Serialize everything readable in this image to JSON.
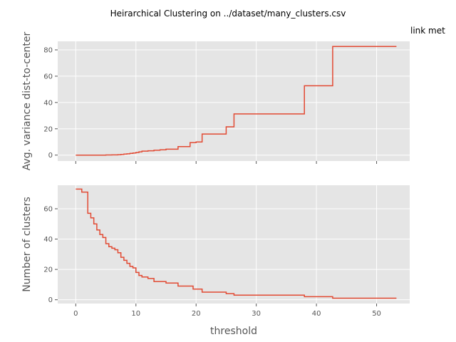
{
  "figure": {
    "suptitle": "Heirarchical Clustering on ../dataset/many_clusters.csv",
    "side_title": "link met",
    "background": "#ffffff",
    "panel_background": "#e5e5e5",
    "grid_color": "#ffffff",
    "line_color": "#e24a33"
  },
  "chart_data": [
    {
      "type": "line",
      "step": true,
      "title": "",
      "xlabel": "",
      "ylabel": "Avg. variance dist-to-center",
      "xlim": [
        -3,
        55.5
      ],
      "ylim": [
        -4.5,
        86.5
      ],
      "xticks": [
        0,
        10,
        20,
        30,
        40,
        50
      ],
      "yticks": [
        0,
        20,
        40,
        60,
        80
      ],
      "ytick_labels": [
        "0",
        "20",
        "40",
        "60",
        "80"
      ],
      "grid": true,
      "series": [
        {
          "x": [
            0,
            5,
            6,
            7,
            7.5,
            8,
            8.5,
            9,
            9.5,
            10,
            10.5,
            11,
            12,
            13,
            14,
            15,
            17,
            19,
            20,
            21,
            23.8,
            25,
            26.3,
            38,
            42.7,
            53.3
          ],
          "y": [
            0,
            0.1,
            0.2,
            0.3,
            0.5,
            0.8,
            1,
            1.3,
            1.6,
            2,
            2.5,
            3,
            3.3,
            3.7,
            4,
            4.5,
            6.5,
            9.5,
            10,
            16,
            16,
            21.5,
            31.3,
            52.7,
            82.6,
            82.6
          ]
        }
      ]
    },
    {
      "type": "line",
      "step": true,
      "title": "",
      "xlabel": "threshold",
      "ylabel": "Number of clusters",
      "xlim": [
        -3,
        55.5
      ],
      "ylim": [
        -2.5,
        75.5
      ],
      "xticks": [
        0,
        10,
        20,
        30,
        40,
        50
      ],
      "xtick_labels": [
        "0",
        "10",
        "20",
        "30",
        "40",
        "50"
      ],
      "yticks": [
        0,
        20,
        40,
        60
      ],
      "ytick_labels": [
        "0",
        "20",
        "40",
        "60"
      ],
      "grid": true,
      "series": [
        {
          "x": [
            0,
            1,
            2,
            2.5,
            3,
            3.5,
            4,
            4.5,
            5,
            5.5,
            6,
            6.5,
            7,
            7.5,
            8,
            8.5,
            9,
            9.5,
            10,
            10.5,
            11,
            12,
            13,
            15,
            17,
            19.5,
            21,
            25,
            26.3,
            38,
            42.7,
            53.3
          ],
          "y": [
            73,
            71,
            57,
            54,
            50,
            46,
            43,
            41,
            37,
            35,
            34,
            33,
            31,
            28,
            26,
            24,
            22,
            21,
            18,
            16,
            15,
            14,
            12,
            11,
            9,
            7,
            5,
            4,
            3,
            2,
            1,
            1
          ]
        }
      ]
    }
  ]
}
